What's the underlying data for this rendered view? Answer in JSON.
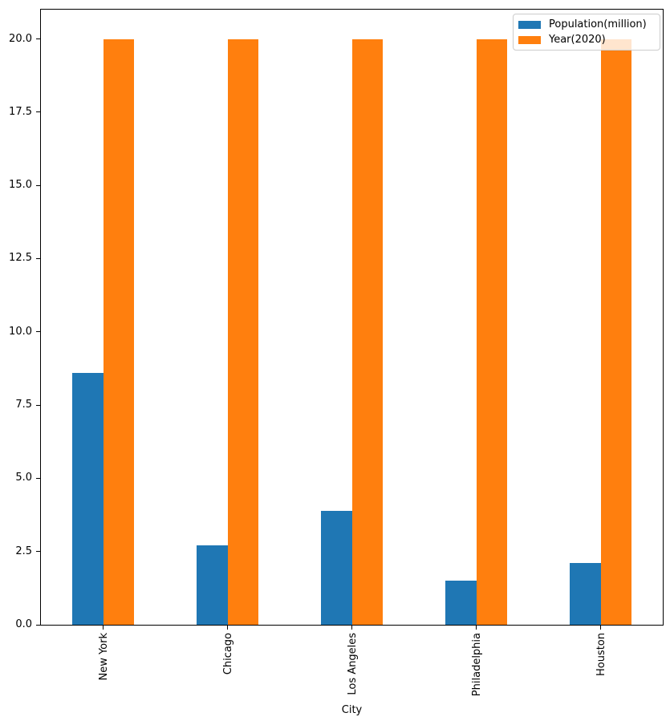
{
  "chart_data": {
    "type": "bar",
    "title": "",
    "xlabel": "City",
    "ylabel": "",
    "categories": [
      "New York",
      "Chicago",
      "Los Angeles",
      "Philadelphia",
      "Houston"
    ],
    "series": [
      {
        "name": "Population(million)",
        "color": "#1f77b4",
        "values": [
          8.6,
          2.7,
          3.9,
          1.5,
          2.1
        ]
      },
      {
        "name": "Year(2020)",
        "color": "#ff7f0e",
        "values": [
          20,
          20,
          20,
          20,
          20
        ]
      }
    ],
    "ylim": [
      0,
      21
    ],
    "yticks": {
      "values": [
        0,
        2.5,
        5,
        7.5,
        10,
        12.5,
        15,
        17.5,
        20
      ],
      "labels": [
        "0.0",
        "2.5",
        "5.0",
        "7.5",
        "10.0",
        "12.5",
        "15.0",
        "17.5",
        "20.0"
      ]
    },
    "grid": false,
    "legend": {
      "position": "upper right"
    },
    "bar_width_fraction": 0.25
  },
  "colors": {
    "background": "#ffffff",
    "spine": "#000000",
    "text": "#000000",
    "legend_border": "#cccccc",
    "series_blue": "#1f77b4",
    "series_orange": "#ff7f0e"
  }
}
